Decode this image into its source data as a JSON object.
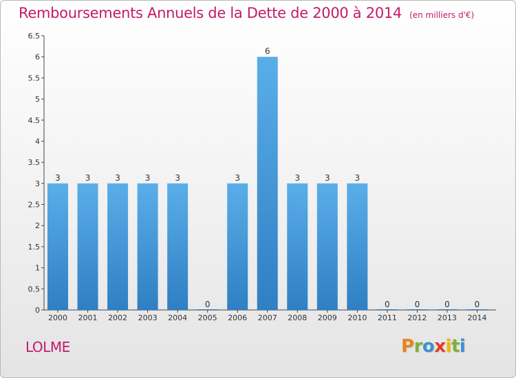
{
  "chart_data": {
    "type": "bar",
    "title": "Remboursements Annuels de la Dette de 2000 à 2014",
    "unit": "(en milliers d'€)",
    "categories": [
      "2000",
      "2001",
      "2002",
      "2003",
      "2004",
      "2005",
      "2006",
      "2007",
      "2008",
      "2009",
      "2010",
      "2011",
      "2012",
      "2013",
      "2014"
    ],
    "values": [
      3,
      3,
      3,
      3,
      3,
      0,
      3,
      6,
      3,
      3,
      3,
      0,
      0,
      0,
      0
    ],
    "value_labels": [
      "3",
      "3",
      "3",
      "3",
      "3",
      "0",
      "3",
      "6",
      "3",
      "3",
      "3",
      "0",
      "0",
      "0",
      "0"
    ],
    "ylim": [
      0,
      6.5
    ],
    "yticks": [
      "0",
      "0.5",
      "1",
      "1.5",
      "2",
      "2.5",
      "3",
      "3.5",
      "4",
      "4.5",
      "5",
      "5.5",
      "6",
      "6.5"
    ],
    "xlabel": "",
    "ylabel": "",
    "grid": false,
    "bar_color": "#4a9fe0"
  },
  "commune": "LOLME",
  "logo": {
    "letters": [
      "P",
      "r",
      "o",
      "x",
      "i",
      "t",
      "i"
    ],
    "colors": [
      "#e8831f",
      "#7fb13b",
      "#3d8fd1",
      "#e23d28",
      "#f0b400",
      "#7fb13b",
      "#3d8fd1"
    ]
  },
  "colors": {
    "title": "#c21a6b",
    "axis": "#333333"
  }
}
